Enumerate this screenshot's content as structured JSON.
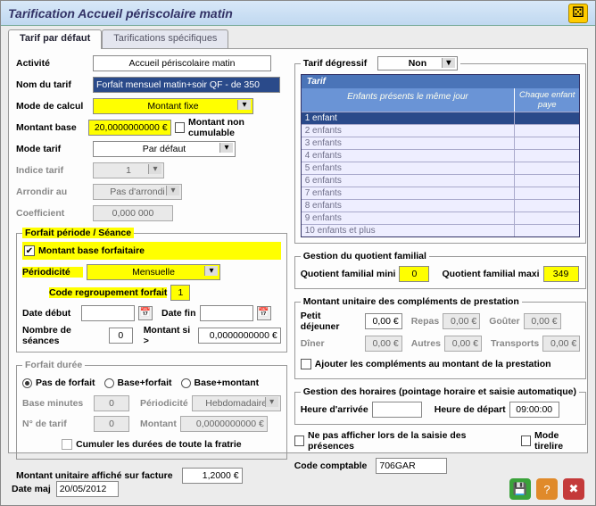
{
  "window": {
    "title": "Tarification Accueil périscolaire matin"
  },
  "tabs": {
    "default": "Tarif par défaut",
    "specific": "Tarifications spécifiques"
  },
  "left": {
    "activite_lbl": "Activité",
    "activite": "Accueil périscolaire matin",
    "nom_lbl": "Nom du tarif",
    "nom": "Forfait mensuel matin+soir QF - de 350",
    "mode_calcul_lbl": "Mode de calcul",
    "mode_calcul": "Montant fixe",
    "montant_base_lbl": "Montant base",
    "montant_base": "20,0000000000 €",
    "non_cumulable": "Montant non cumulable",
    "mode_tarif_lbl": "Mode tarif",
    "mode_tarif": "Par défaut",
    "indice_lbl": "Indice tarif",
    "indice": "1",
    "arrondir_lbl": "Arrondir au",
    "arrondir": "Pas d'arrondi",
    "coef_lbl": "Coefficient",
    "coef": "0,000 000"
  },
  "forfait": {
    "legend": "Forfait période / Séance",
    "base_forfait": "Montant base forfaitaire",
    "periodicite_lbl": "Périodicité",
    "periodicite": "Mensuelle",
    "code_regroup_lbl": "Code regroupement forfait",
    "code_regroup": "1",
    "date_debut_lbl": "Date début",
    "date_fin_lbl": "Date fin",
    "nb_seances_lbl": "Nombre de séances",
    "nb_seances": "0",
    "montant_si_lbl": "Montant si >",
    "montant_si": "0,0000000000 €"
  },
  "duree": {
    "legend": "Forfait durée",
    "pas": "Pas de forfait",
    "bf": "Base+forfait",
    "bm": "Base+montant",
    "base_min_lbl": "Base minutes",
    "base_min": "0",
    "periodicite_lbl": "Périodicité",
    "periodicite": "Hebdomadaire",
    "ntarif_lbl": "N° de tarif",
    "ntarif": "0",
    "montant_lbl": "Montant",
    "montant": "0,0000000000 €",
    "cumuler": "Cumuler les durées de toute la fratrie"
  },
  "unitaire": {
    "lbl": "Montant unitaire affiché sur facture",
    "val": "1,2000 €"
  },
  "degressif": {
    "legend": "Tarif dégressif",
    "value": "Non",
    "table_title": "Tarif",
    "col1": "Enfants présents le même jour",
    "col2": "Chaque enfant paye",
    "rows": [
      "1 enfant",
      "2 enfants",
      "3 enfants",
      "4 enfants",
      "5 enfants",
      "6 enfants",
      "7 enfants",
      "8 enfants",
      "9 enfants",
      "10 enfants et plus"
    ]
  },
  "qf": {
    "legend": "Gestion du quotient familial",
    "mini_lbl": "Quotient familial mini",
    "mini": "0",
    "maxi_lbl": "Quotient familial maxi",
    "maxi": "349"
  },
  "compl": {
    "legend": "Montant unitaire des compléments de prestation",
    "petit_lbl": "Petit déjeuner",
    "petit": "0,00 €",
    "repas_lbl": "Repas",
    "repas": "0,00 €",
    "gouter_lbl": "Goûter",
    "gouter": "0,00 €",
    "diner_lbl": "Dîner",
    "diner": "0,00 €",
    "autres_lbl": "Autres",
    "autres": "0,00 €",
    "transports_lbl": "Transports",
    "transports": "0,00 €",
    "ajouter": "Ajouter les compléments au montant de la prestation"
  },
  "horaires": {
    "legend": "Gestion des horaires (pointage horaire et saisie automatique)",
    "arrivee_lbl": "Heure d'arrivée",
    "arrivee": "",
    "depart_lbl": "Heure de départ",
    "depart": "09:00:00"
  },
  "options": {
    "ne_pas_afficher": "Ne pas afficher lors de la saisie des présences",
    "tirelire": "Mode tirelire"
  },
  "comptable": {
    "lbl": "Code comptable",
    "val": "706GAR"
  },
  "footer": {
    "date_maj_lbl": "Date maj",
    "date_maj": "20/05/2012"
  },
  "colors": {
    "green": "#3aa23a",
    "orange": "#e08a2a",
    "red": "#c43a3a"
  }
}
